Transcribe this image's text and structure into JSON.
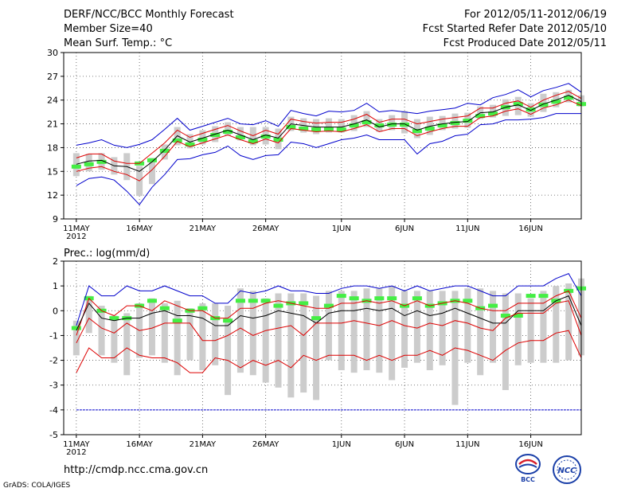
{
  "header": {
    "title": "DERF/NCC/BCC Monthly Forecast",
    "member_size": "Member Size=40",
    "variable": "Mean Surf. Temp.: °C",
    "period": "For 2012/05/11-2012/06/19",
    "fcst_started": "Fcst Started Refer Date 2012/05/10",
    "fcst_produced": "Fcst Produced Date 2012/05/11"
  },
  "footer": {
    "url": "http://cmdp.ncc.cma.gov.cn",
    "grads": "GrADS: COLA/IGES",
    "logo_bcc": "BCC",
    "logo_ncc": "NCC"
  },
  "colors": {
    "spread_lines": "#0000cc",
    "inner_lines": "#dd0000",
    "mean_line": "#000000",
    "boxes": "#cccccc",
    "observed": "#44ee44"
  },
  "chart_data": [
    {
      "type": "line",
      "title": "Mean Surf. Temp.: °C",
      "xlabel": "",
      "ylabel": "",
      "ylim": [
        9,
        30
      ],
      "yticks": [
        9,
        12,
        15,
        18,
        21,
        24,
        27,
        30
      ],
      "xlim": [
        0,
        41
      ],
      "xticks": [
        {
          "x": 1,
          "label": "11MAY",
          "sub": "2012"
        },
        {
          "x": 6,
          "label": "16MAY"
        },
        {
          "x": 11,
          "label": "21MAY"
        },
        {
          "x": 16,
          "label": "26MAY"
        },
        {
          "x": 22,
          "label": "1JUN"
        },
        {
          "x": 27,
          "label": "6JUN"
        },
        {
          "x": 32,
          "label": "11JUN"
        },
        {
          "x": 37,
          "label": "16JUN"
        }
      ],
      "grid": true,
      "series": [
        {
          "name": "max",
          "color": "#0000cc",
          "values": [
            18.3,
            18.6,
            19.0,
            18.3,
            18.0,
            18.4,
            19.0,
            20.3,
            21.7,
            20.2,
            20.7,
            21.2,
            21.7,
            21.0,
            20.9,
            21.4,
            20.7,
            22.7,
            22.3,
            22.0,
            22.6,
            22.5,
            22.7,
            23.6,
            22.5,
            22.7,
            22.5,
            22.3,
            22.6,
            22.8,
            23.0,
            23.6,
            23.4,
            24.3,
            24.7,
            25.3,
            24.4,
            25.2,
            25.6,
            26.1,
            25.0
          ]
        },
        {
          "name": "upper",
          "color": "#dd0000",
          "values": [
            16.7,
            17.2,
            17.2,
            16.3,
            16.0,
            16.0,
            17.3,
            18.6,
            20.2,
            19.3,
            19.8,
            20.3,
            20.8,
            20.1,
            19.5,
            20.2,
            19.7,
            21.6,
            21.3,
            21.1,
            21.2,
            21.2,
            21.6,
            22.2,
            21.2,
            21.6,
            21.6,
            21.0,
            21.3,
            21.6,
            21.8,
            22.0,
            23.0,
            23.0,
            23.6,
            23.9,
            23.1,
            24.0,
            24.6,
            25.1,
            24.2
          ]
        },
        {
          "name": "mean",
          "color": "#000000",
          "values": [
            15.9,
            16.3,
            16.4,
            15.7,
            15.6,
            15.0,
            16.2,
            17.7,
            19.5,
            18.7,
            19.2,
            19.7,
            20.2,
            19.6,
            19.0,
            19.6,
            19.2,
            21.0,
            20.8,
            20.6,
            20.6,
            20.6,
            21.0,
            21.5,
            20.6,
            21.0,
            21.0,
            20.2,
            20.7,
            21.0,
            21.2,
            21.3,
            22.4,
            22.5,
            23.1,
            23.4,
            22.7,
            23.5,
            24.0,
            24.6,
            23.8
          ]
        },
        {
          "name": "lower",
          "color": "#dd0000",
          "values": [
            15.0,
            15.4,
            15.6,
            15.0,
            14.6,
            13.8,
            15.2,
            16.9,
            18.8,
            18.1,
            18.6,
            19.1,
            19.6,
            19.0,
            18.5,
            19.1,
            18.6,
            20.4,
            20.2,
            20.0,
            20.1,
            20.0,
            20.4,
            20.9,
            20.0,
            20.4,
            20.4,
            19.5,
            20.0,
            20.4,
            20.7,
            20.7,
            21.8,
            22.0,
            22.6,
            22.9,
            22.2,
            23.0,
            23.4,
            24.0,
            23.3
          ]
        },
        {
          "name": "min",
          "color": "#0000cc",
          "values": [
            13.2,
            14.1,
            14.3,
            13.9,
            12.5,
            10.8,
            13.0,
            14.6,
            16.5,
            16.6,
            17.1,
            17.4,
            18.2,
            17.0,
            16.5,
            17.0,
            17.1,
            18.7,
            18.5,
            18.0,
            18.5,
            19.0,
            19.2,
            19.6,
            19.0,
            19.0,
            19.0,
            17.2,
            18.5,
            18.8,
            19.5,
            19.7,
            20.9,
            21.0,
            21.5,
            21.5,
            21.6,
            21.8,
            22.3,
            22.3,
            22.3
          ]
        }
      ],
      "boxes": [
        {
          "lo": 14.4,
          "hi": 17.3
        },
        {
          "lo": 15.0,
          "hi": 17.2
        },
        {
          "lo": 15.2,
          "hi": 17.3
        },
        {
          "lo": 14.6,
          "hi": 16.8
        },
        {
          "lo": 13.9,
          "hi": 17.3
        },
        {
          "lo": 11.9,
          "hi": 15.7
        },
        {
          "lo": 13.4,
          "hi": 16.7
        },
        {
          "lo": 16.5,
          "hi": 18.4
        },
        {
          "lo": 18.3,
          "hi": 20.6
        },
        {
          "lo": 17.9,
          "hi": 19.7
        },
        {
          "lo": 18.4,
          "hi": 20.2
        },
        {
          "lo": 18.7,
          "hi": 20.7
        },
        {
          "lo": 19.5,
          "hi": 21.2
        },
        {
          "lo": 18.9,
          "hi": 20.6
        },
        {
          "lo": 18.3,
          "hi": 20.6
        },
        {
          "lo": 18.4,
          "hi": 20.6
        },
        {
          "lo": 17.8,
          "hi": 20.4
        },
        {
          "lo": 20.1,
          "hi": 21.9
        },
        {
          "lo": 19.9,
          "hi": 21.7
        },
        {
          "lo": 19.7,
          "hi": 21.6
        },
        {
          "lo": 19.9,
          "hi": 21.7
        },
        {
          "lo": 19.9,
          "hi": 21.6
        },
        {
          "lo": 20.1,
          "hi": 22.1
        },
        {
          "lo": 20.6,
          "hi": 22.6
        },
        {
          "lo": 20.0,
          "hi": 21.6
        },
        {
          "lo": 20.2,
          "hi": 22.1
        },
        {
          "lo": 19.8,
          "hi": 22.6
        },
        {
          "lo": 19.2,
          "hi": 21.6
        },
        {
          "lo": 19.6,
          "hi": 21.9
        },
        {
          "lo": 20.2,
          "hi": 22.0
        },
        {
          "lo": 20.4,
          "hi": 22.3
        },
        {
          "lo": 20.5,
          "hi": 22.4
        },
        {
          "lo": 21.6,
          "hi": 23.2
        },
        {
          "lo": 21.8,
          "hi": 23.4
        },
        {
          "lo": 22.0,
          "hi": 24.1
        },
        {
          "lo": 22.1,
          "hi": 24.4
        },
        {
          "lo": 21.9,
          "hi": 23.6
        },
        {
          "lo": 22.5,
          "hi": 24.8
        },
        {
          "lo": 23.1,
          "hi": 25.0
        },
        {
          "lo": 23.7,
          "hi": 25.3
        },
        {
          "lo": 23.2,
          "hi": 24.6
        }
      ],
      "observed": [
        15.6,
        15.9,
        16.2,
        null,
        null,
        16.0,
        16.4,
        17.6,
        18.9,
        18.4,
        19.0,
        19.6,
        20.0,
        19.3,
        18.8,
        19.4,
        19.0,
        20.6,
        20.4,
        20.3,
        20.3,
        20.3,
        20.8,
        21.2,
        20.8,
        20.9,
        20.9,
        20.1,
        20.4,
        20.8,
        21.1,
        21.4,
        22.0,
        22.3,
        23.1,
        23.5,
        22.8,
        23.4,
        23.8,
        24.3,
        23.5
      ]
    },
    {
      "type": "line",
      "title": "Prec.: log(mm/d)",
      "xlabel": "",
      "ylabel": "",
      "ylim": [
        -5,
        2
      ],
      "yticks": [
        -5,
        -4,
        -3,
        -2,
        -1,
        0,
        1,
        2
      ],
      "xlim": [
        0,
        41
      ],
      "xticks": [
        {
          "x": 1,
          "label": "11MAY",
          "sub": "2012"
        },
        {
          "x": 6,
          "label": "16MAY"
        },
        {
          "x": 11,
          "label": "21MAY"
        },
        {
          "x": 16,
          "label": "26MAY"
        },
        {
          "x": 22,
          "label": "1JUN"
        },
        {
          "x": 27,
          "label": "6JUN"
        },
        {
          "x": 32,
          "label": "11JUN"
        },
        {
          "x": 37,
          "label": "16JUN"
        }
      ],
      "grid": true,
      "series": [
        {
          "name": "max",
          "color": "#0000cc",
          "values": [
            -0.6,
            1.0,
            0.6,
            0.6,
            1.0,
            0.8,
            0.8,
            1.0,
            0.8,
            0.6,
            0.6,
            0.3,
            0.3,
            0.8,
            0.7,
            0.8,
            1.0,
            0.8,
            0.8,
            0.7,
            0.7,
            0.9,
            1.0,
            1.0,
            0.9,
            1.0,
            0.8,
            1.0,
            0.8,
            0.9,
            1.0,
            1.0,
            0.8,
            0.6,
            0.6,
            1.0,
            1.0,
            1.0,
            1.3,
            1.5,
            0.6
          ]
        },
        {
          "name": "upper",
          "color": "#dd0000",
          "values": [
            -1.0,
            0.5,
            0.0,
            -0.2,
            0.2,
            0.2,
            0.0,
            0.4,
            0.2,
            0.0,
            0.0,
            -0.3,
            -0.3,
            0.1,
            0.1,
            0.3,
            0.4,
            0.3,
            0.2,
            0.1,
            0.1,
            0.3,
            0.3,
            0.4,
            0.3,
            0.4,
            0.2,
            0.4,
            0.2,
            0.3,
            0.4,
            0.3,
            0.1,
            0.0,
            0.0,
            0.3,
            0.3,
            0.3,
            0.6,
            0.8,
            -0.3
          ]
        },
        {
          "name": "mean",
          "color": "#000000",
          "values": [
            -0.8,
            0.3,
            -0.3,
            -0.4,
            -0.3,
            -0.3,
            -0.1,
            0.0,
            -0.2,
            -0.2,
            -0.3,
            -0.6,
            -0.6,
            -0.2,
            -0.3,
            -0.2,
            0.0,
            -0.1,
            -0.2,
            -0.5,
            -0.1,
            0.0,
            0.0,
            0.1,
            0.0,
            0.1,
            -0.2,
            0.0,
            -0.2,
            -0.1,
            0.1,
            -0.1,
            -0.3,
            -0.5,
            -0.5,
            0.0,
            0.0,
            0.0,
            0.4,
            0.6,
            -0.6
          ]
        },
        {
          "name": "lower",
          "color": "#dd0000",
          "values": [
            -1.3,
            -0.3,
            -0.7,
            -0.9,
            -0.5,
            -0.8,
            -0.7,
            -0.5,
            -0.5,
            -0.5,
            -1.2,
            -1.2,
            -1.0,
            -0.7,
            -1.0,
            -0.8,
            -0.7,
            -0.6,
            -1.0,
            -0.5,
            -0.5,
            -0.5,
            -0.4,
            -0.5,
            -0.6,
            -0.4,
            -0.6,
            -0.7,
            -0.5,
            -0.6,
            -0.4,
            -0.5,
            -0.7,
            -0.8,
            -0.3,
            -0.1,
            -0.1,
            -0.1,
            0.3,
            0.4,
            -1.0
          ]
        },
        {
          "name": "min",
          "color": "#dd0000",
          "values": [
            -2.5,
            -1.5,
            -1.9,
            -1.9,
            -1.5,
            -1.8,
            -1.9,
            -1.9,
            -2.1,
            -2.5,
            -2.5,
            -1.9,
            -2.0,
            -2.3,
            -2.0,
            -2.2,
            -2.0,
            -2.3,
            -1.8,
            -2.0,
            -1.8,
            -1.8,
            -1.8,
            -2.0,
            -1.8,
            -2.0,
            -1.8,
            -1.8,
            -1.6,
            -1.8,
            -1.5,
            -1.6,
            -1.8,
            -2.0,
            -1.6,
            -1.3,
            -1.2,
            -1.2,
            -0.9,
            -0.8,
            -1.9
          ]
        },
        {
          "name": "dry-threshold",
          "color": "#0000cc",
          "values": [
            -4.0,
            -4.0,
            -4.0,
            -4.0,
            -4.0,
            -4.0,
            -4.0,
            -4.0,
            -4.0,
            -4.0,
            -4.0,
            -4.0,
            -4.0,
            -4.0,
            -4.0,
            -4.0,
            -4.0,
            -4.0,
            -4.0,
            -4.0,
            -4.0,
            -4.0,
            -4.0,
            -4.0,
            -4.0,
            -4.0,
            -4.0,
            -4.0,
            -4.0,
            -4.0,
            -4.0,
            -4.0,
            -4.0,
            -4.0,
            -4.0,
            -4.0,
            -4.0,
            -4.0,
            -4.0,
            -4.0,
            -4.0
          ]
        }
      ],
      "boxes": [
        {
          "lo": -1.8,
          "hi": -0.4
        },
        {
          "lo": -0.9,
          "hi": 0.6
        },
        {
          "lo": -1.8,
          "hi": 0.2
        },
        {
          "lo": -2.1,
          "hi": -0.2
        },
        {
          "lo": -2.6,
          "hi": -0.1
        },
        {
          "lo": -1.9,
          "hi": 0.3
        },
        {
          "lo": -1.8,
          "hi": 0.5
        },
        {
          "lo": -2.1,
          "hi": 0.3
        },
        {
          "lo": -2.6,
          "hi": 0.4
        },
        {
          "lo": -2.0,
          "hi": 0.1
        },
        {
          "lo": -2.4,
          "hi": 0.3
        },
        {
          "lo": -2.2,
          "hi": 0.3
        },
        {
          "lo": -3.4,
          "hi": 0.2
        },
        {
          "lo": -2.5,
          "hi": 0.9
        },
        {
          "lo": -2.6,
          "hi": 0.8
        },
        {
          "lo": -2.9,
          "hi": 0.5
        },
        {
          "lo": -3.1,
          "hi": 0.7
        },
        {
          "lo": -3.5,
          "hi": 0.7
        },
        {
          "lo": -3.3,
          "hi": 0.7
        },
        {
          "lo": -3.6,
          "hi": 0.6
        },
        {
          "lo": -2.0,
          "hi": 0.8
        },
        {
          "lo": -2.4,
          "hi": 0.8
        },
        {
          "lo": -2.5,
          "hi": 0.8
        },
        {
          "lo": -2.4,
          "hi": 0.9
        },
        {
          "lo": -2.5,
          "hi": 0.9
        },
        {
          "lo": -2.8,
          "hi": 1.0
        },
        {
          "lo": -2.3,
          "hi": 0.8
        },
        {
          "lo": -2.1,
          "hi": 0.8
        },
        {
          "lo": -2.4,
          "hi": 0.8
        },
        {
          "lo": -2.2,
          "hi": 0.8
        },
        {
          "lo": -3.8,
          "hi": 0.8
        },
        {
          "lo": -2.1,
          "hi": 0.9
        },
        {
          "lo": -2.6,
          "hi": 0.9
        },
        {
          "lo": -2.1,
          "hi": 0.8
        },
        {
          "lo": -3.2,
          "hi": 0.7
        },
        {
          "lo": -2.2,
          "hi": 0.7
        },
        {
          "lo": -2.1,
          "hi": 0.5
        },
        {
          "lo": -2.1,
          "hi": 0.8
        },
        {
          "lo": -2.1,
          "hi": 1.0
        },
        {
          "lo": -2.0,
          "hi": 1.1
        },
        {
          "lo": -1.8,
          "hi": 1.3
        }
      ],
      "observed": [
        -0.7,
        0.5,
        0.0,
        -0.3,
        -0.3,
        0.2,
        0.4,
        0.1,
        -0.4,
        0.0,
        0.1,
        -0.3,
        -0.4,
        0.4,
        0.4,
        0.4,
        0.2,
        0.3,
        0.3,
        -0.3,
        0.2,
        0.6,
        0.5,
        0.4,
        0.5,
        0.5,
        0.2,
        0.5,
        0.2,
        0.3,
        0.4,
        0.4,
        0.1,
        0.2,
        -0.2,
        -0.2,
        0.6,
        0.6,
        0.4,
        0.8,
        0.9
      ]
    }
  ]
}
